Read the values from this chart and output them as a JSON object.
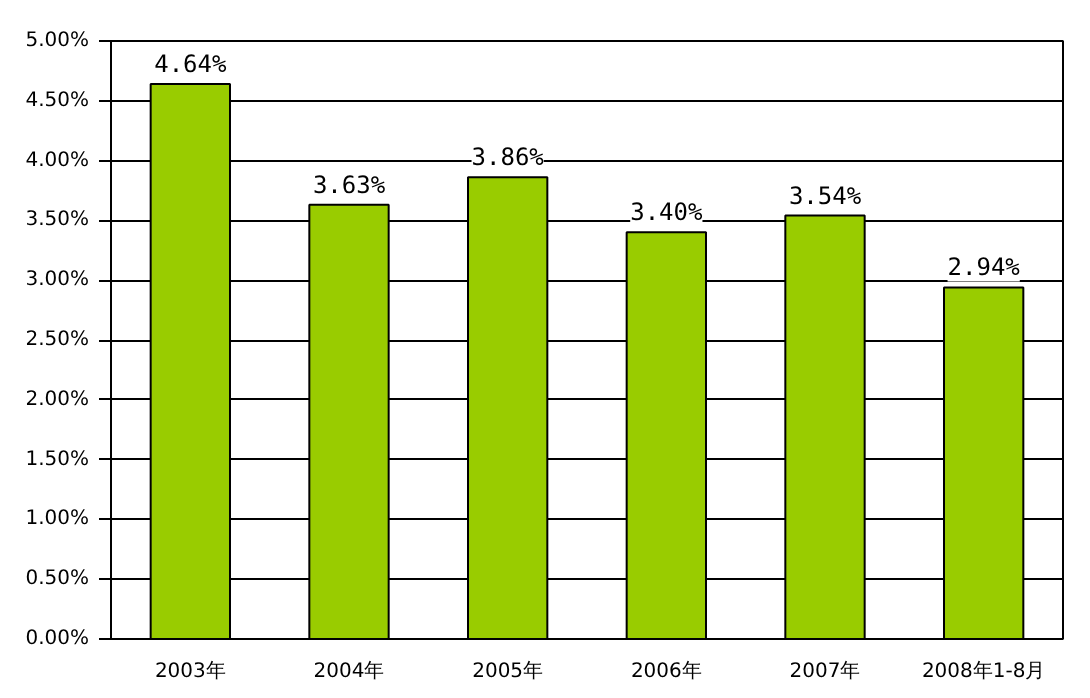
{
  "chart_data": {
    "type": "bar",
    "categories": [
      "2003年",
      "2004年",
      "2005年",
      "2006年",
      "2007年",
      "2008年1-8月"
    ],
    "values": [
      4.64,
      3.63,
      3.86,
      3.4,
      3.54,
      2.94
    ],
    "value_labels": [
      "4.64%",
      "3.63%",
      "3.86%",
      "3.40%",
      "3.54%",
      "2.94%"
    ],
    "color": "#99cc00",
    "ylim": [
      0,
      5
    ],
    "yticks": [
      {
        "value": 0,
        "label": "0.00%"
      },
      {
        "value": 0.5,
        "label": "0.50%"
      },
      {
        "value": 1,
        "label": "1.00%"
      },
      {
        "value": 1.5,
        "label": "1.50%"
      },
      {
        "value": 2,
        "label": "2.00%"
      },
      {
        "value": 2.5,
        "label": "2.50%"
      },
      {
        "value": 3,
        "label": "3.00%"
      },
      {
        "value": 3.5,
        "label": "3.50%"
      },
      {
        "value": 4,
        "label": "4.00%"
      },
      {
        "value": 4.5,
        "label": "4.50%"
      },
      {
        "value": 5,
        "label": "5.00%"
      }
    ],
    "grid": "y"
  }
}
